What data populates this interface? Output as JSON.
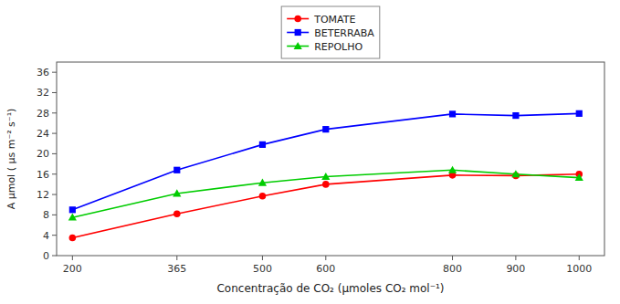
{
  "chart_data": {
    "type": "line",
    "x": [
      200,
      365,
      500,
      600,
      800,
      900,
      1000
    ],
    "series": [
      {
        "name": "TOMATE",
        "color": "#ff0000",
        "marker": "circle",
        "values": [
          3.5,
          8.2,
          11.7,
          14.0,
          15.8,
          15.7,
          16.0
        ]
      },
      {
        "name": "BETERRABA",
        "color": "#0000ff",
        "marker": "square",
        "values": [
          9.0,
          16.8,
          21.8,
          24.8,
          27.8,
          27.5,
          27.9
        ]
      },
      {
        "name": "REPOLHO",
        "color": "#00cc00",
        "marker": "triangle",
        "values": [
          7.5,
          12.2,
          14.3,
          15.5,
          16.8,
          16.0,
          15.3
        ]
      }
    ],
    "xlabel": "Concentração de CO₂ (µmoles CO₂ mol⁻¹)",
    "ylabel": "A μmol ( μs m⁻² s⁻¹)",
    "xlim": [
      175,
      1040
    ],
    "ylim": [
      0,
      38
    ],
    "xticks": [
      200,
      365,
      500,
      600,
      800,
      900,
      1000
    ],
    "yticks": [
      0,
      4,
      8,
      12,
      16,
      20,
      24,
      28,
      32,
      36
    ],
    "legend": "top"
  }
}
